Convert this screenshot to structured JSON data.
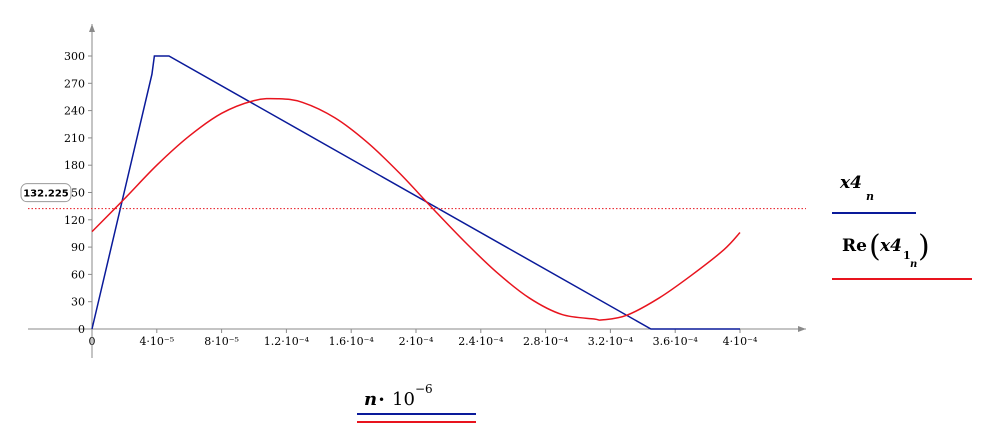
{
  "chart_data": {
    "type": "line",
    "xlim": [
      0,
      0.0004
    ],
    "ylim": [
      0,
      300
    ],
    "x_ticks": [
      0,
      4e-05,
      8e-05,
      0.00012,
      0.00016,
      0.0002,
      0.00024,
      0.00028,
      0.00032,
      0.00036,
      0.0004
    ],
    "x_tick_labels": [
      "0",
      "4·10⁻⁵",
      "8·10⁻⁵",
      "1.2·10⁻⁴",
      "1.6·10⁻⁴",
      "2·10⁻⁴",
      "2.4·10⁻⁴",
      "2.8·10⁻⁴",
      "3.2·10⁻⁴",
      "3.6·10⁻⁴",
      "4·10⁻⁴"
    ],
    "y_ticks": [
      0,
      30,
      60,
      90,
      120,
      150,
      180,
      210,
      240,
      270,
      300
    ],
    "y_tick_labels": [
      "0",
      "30",
      "60",
      "90",
      "120",
      "150",
      "180",
      "210",
      "240",
      "270",
      "300"
    ],
    "xlabel": "n·10⁻⁶",
    "series": [
      {
        "name": "x4ₙ",
        "color": "#0a1a9a",
        "x": [
          0,
          3.7e-05,
          3.85e-05,
          4.75e-05,
          0.000345,
          0.0004
        ],
        "y": [
          0,
          280,
          300,
          300,
          0,
          0
        ]
      },
      {
        "name": "Re(x4₁ₙ)",
        "color": "#e8141e",
        "x": [
          0,
          2e-05,
          4e-05,
          6e-05,
          8e-05,
          0.0001,
          0.000115,
          0.00013,
          0.00015,
          0.00017,
          0.00019,
          0.00021,
          0.00023,
          0.00025,
          0.00027,
          0.00029,
          0.00031,
          0.000315,
          0.00033,
          0.00035,
          0.00037,
          0.00039,
          0.0004
        ],
        "y": [
          107,
          143,
          180,
          212,
          237,
          251,
          253,
          249,
          232,
          205,
          171,
          133,
          96,
          62,
          34,
          16,
          11,
          10,
          15,
          34,
          59,
          87,
          106
        ]
      }
    ],
    "marker": {
      "label": "132.225",
      "value": 132.225,
      "color": "#e8141e",
      "style": "dotted"
    },
    "grid": false,
    "legend_placement": "right"
  },
  "legend": {
    "items": [
      {
        "label": "x4",
        "sub": "n",
        "color": "#0a1a9a"
      },
      {
        "label": "Re",
        "inner": "x4",
        "sub1": "1",
        "sub2": "n",
        "color": "#e8141e"
      }
    ]
  },
  "xaxis_label": {
    "base": "n",
    "op": "•",
    "mult": "10",
    "exp": "−6",
    "colors": [
      "#0a1a9a",
      "#e8141e"
    ]
  }
}
